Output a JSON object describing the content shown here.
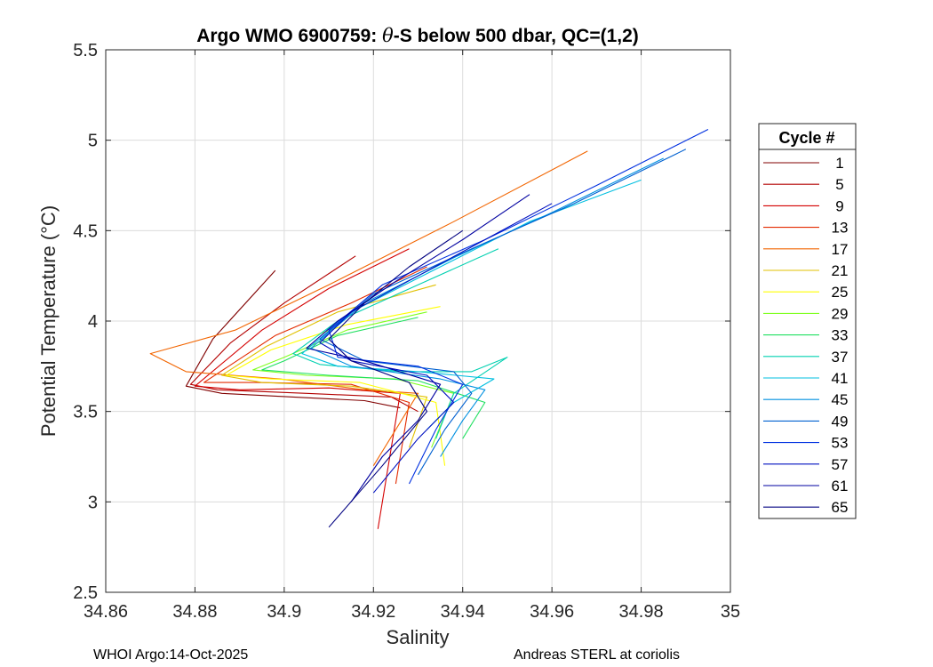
{
  "chart_data": {
    "type": "line",
    "title_prefix": "Argo WMO 6900759: ",
    "title_theta": "θ",
    "title_suffix": "-S below 500 dbar,  QC=(1,2)",
    "xlabel": "Salinity",
    "ylabel": "Potential Temperature (°C)",
    "xlim": [
      34.86,
      35.0
    ],
    "ylim": [
      2.5,
      5.5
    ],
    "xticks": [
      34.86,
      34.88,
      34.9,
      34.92,
      34.94,
      34.96,
      34.98,
      35.0
    ],
    "xtick_labels": [
      "34.86",
      "34.88",
      "34.9",
      "34.92",
      "34.94",
      "34.96",
      "34.98",
      "35"
    ],
    "yticks": [
      2.5,
      3.0,
      3.5,
      4.0,
      4.5,
      5.0,
      5.5
    ],
    "ytick_labels": [
      "2.5",
      "3",
      "3.5",
      "4",
      "4.5",
      "5",
      "5.5"
    ],
    "grid": true,
    "legend_position": "right",
    "legend_title": "Cycle #",
    "series": [
      {
        "name": "1",
        "color": "#800000",
        "x": [
          34.898,
          34.884,
          34.878,
          34.886,
          34.902,
          34.918,
          34.926
        ],
        "y": [
          4.28,
          3.9,
          3.64,
          3.6,
          3.58,
          3.56,
          3.52
        ]
      },
      {
        "name": "5",
        "color": "#b30000",
        "x": [
          34.916,
          34.9,
          34.888,
          34.879,
          34.885,
          34.905,
          34.924,
          34.93
        ],
        "y": [
          4.36,
          4.1,
          3.88,
          3.65,
          3.62,
          3.6,
          3.58,
          3.5
        ]
      },
      {
        "name": "9",
        "color": "#d40000",
        "x": [
          34.928,
          34.91,
          34.895,
          34.88,
          34.89,
          34.91,
          34.926,
          34.921
        ],
        "y": [
          4.4,
          4.18,
          3.95,
          3.64,
          3.62,
          3.63,
          3.6,
          2.85
        ]
      },
      {
        "name": "13",
        "color": "#e32b00",
        "x": [
          34.932,
          34.915,
          34.898,
          34.882,
          34.894,
          34.915,
          34.928,
          34.925
        ],
        "y": [
          4.3,
          4.1,
          3.92,
          3.66,
          3.66,
          3.65,
          3.55,
          3.1
        ]
      },
      {
        "name": "17",
        "color": "#f26500",
        "x": [
          34.968,
          34.938,
          34.91,
          34.889,
          34.87,
          34.878,
          34.899,
          34.918,
          34.93,
          34.92
        ],
        "y": [
          4.94,
          4.55,
          4.2,
          3.95,
          3.82,
          3.72,
          3.68,
          3.62,
          3.6,
          3.2
        ]
      },
      {
        "name": "21",
        "color": "#e0c000",
        "x": [
          34.934,
          34.912,
          34.896,
          34.886,
          34.895,
          34.915,
          34.932,
          34.928
        ],
        "y": [
          4.2,
          4.05,
          3.86,
          3.7,
          3.66,
          3.64,
          3.58,
          3.3
        ]
      },
      {
        "name": "25",
        "color": "#ffff00",
        "x": [
          34.935,
          34.914,
          34.897,
          34.887,
          34.897,
          34.917,
          34.934,
          34.936
        ],
        "y": [
          4.08,
          3.98,
          3.84,
          3.7,
          3.68,
          3.66,
          3.55,
          3.2
        ]
      },
      {
        "name": "29",
        "color": "#80ff20",
        "x": [
          34.932,
          34.914,
          34.9,
          34.893,
          34.905,
          34.925,
          34.938,
          34.933
        ],
        "y": [
          4.05,
          3.95,
          3.8,
          3.73,
          3.7,
          3.68,
          3.6,
          3.3
        ]
      },
      {
        "name": "33",
        "color": "#20e060",
        "x": [
          34.93,
          34.912,
          34.9,
          34.895,
          34.91,
          34.93,
          34.945,
          34.94
        ],
        "y": [
          4.02,
          3.92,
          3.78,
          3.73,
          3.7,
          3.67,
          3.55,
          3.35
        ]
      },
      {
        "name": "37",
        "color": "#00d0b0",
        "x": [
          34.948,
          34.93,
          34.912,
          34.902,
          34.908,
          34.926,
          34.942,
          34.95,
          34.938,
          34.934
        ],
        "y": [
          4.4,
          4.2,
          4.0,
          3.82,
          3.76,
          3.72,
          3.72,
          3.8,
          3.6,
          3.35
        ]
      },
      {
        "name": "41",
        "color": "#00bfe0",
        "x": [
          34.98,
          34.955,
          34.935,
          34.915,
          34.904,
          34.912,
          34.93,
          34.947,
          34.938,
          34.932
        ],
        "y": [
          4.78,
          4.55,
          4.3,
          4.05,
          3.82,
          3.75,
          3.72,
          3.68,
          3.55,
          3.4
        ]
      },
      {
        "name": "45",
        "color": "#0090e0",
        "x": [
          34.985,
          34.96,
          34.938,
          34.918,
          34.906,
          34.915,
          34.935,
          34.945,
          34.94,
          34.935
        ],
        "y": [
          4.9,
          4.6,
          4.35,
          4.1,
          3.85,
          3.75,
          3.68,
          3.62,
          3.45,
          3.25
        ]
      },
      {
        "name": "49",
        "color": "#0060d0",
        "x": [
          34.99,
          34.965,
          34.942,
          34.92,
          34.908,
          34.918,
          34.938,
          34.942,
          34.936,
          34.93
        ],
        "y": [
          4.95,
          4.65,
          4.4,
          4.15,
          3.9,
          3.78,
          3.72,
          3.6,
          3.4,
          3.15
        ]
      },
      {
        "name": "53",
        "color": "#0030e0",
        "x": [
          34.995,
          34.97,
          34.945,
          34.922,
          34.91,
          34.912,
          34.93,
          34.94,
          34.934,
          34.928
        ],
        "y": [
          5.06,
          4.75,
          4.45,
          4.2,
          3.95,
          3.8,
          3.75,
          3.65,
          3.4,
          3.1
        ]
      },
      {
        "name": "57",
        "color": "#0010c0",
        "x": [
          34.96,
          34.945,
          34.93,
          34.915,
          34.908,
          34.915,
          34.932,
          34.938,
          34.93,
          34.92
        ],
        "y": [
          4.65,
          4.45,
          4.25,
          4.05,
          3.88,
          3.78,
          3.7,
          3.55,
          3.35,
          3.05
        ]
      },
      {
        "name": "61",
        "color": "#0000a0",
        "x": [
          34.955,
          34.94,
          34.925,
          34.912,
          34.905,
          34.918,
          34.935,
          34.93,
          34.922,
          34.915
        ],
        "y": [
          4.7,
          4.45,
          4.22,
          4.0,
          3.85,
          3.78,
          3.65,
          3.45,
          3.25,
          3.0
        ]
      },
      {
        "name": "65",
        "color": "#000080",
        "x": [
          34.94,
          34.928,
          34.918,
          34.91,
          34.915,
          34.928,
          34.932,
          34.922,
          34.91
        ],
        "y": [
          4.5,
          4.3,
          4.1,
          3.9,
          3.78,
          3.66,
          3.5,
          3.2,
          2.86
        ]
      }
    ]
  },
  "footer": {
    "left": "WHOI Argo:14-Oct-2025",
    "right": "Andreas STERL at coriolis"
  }
}
